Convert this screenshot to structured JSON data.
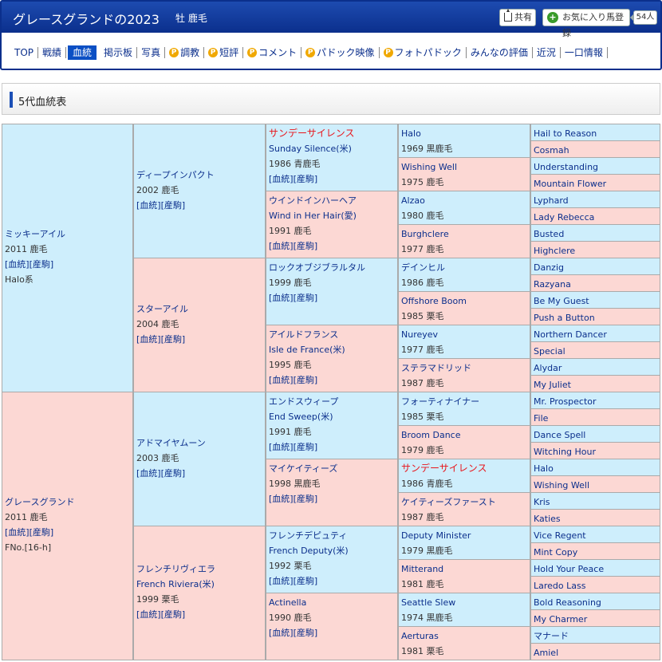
{
  "header": {
    "title": "グレースグランドの2023",
    "sub": "牡 鹿毛",
    "share_label": "共有",
    "fav_label": "お気に入り馬登録",
    "fav_count": "54人"
  },
  "nav": [
    {
      "label": "TOP",
      "p": false,
      "active": false
    },
    {
      "label": "戦績",
      "p": false,
      "active": false
    },
    {
      "label": "血統",
      "p": false,
      "active": true
    },
    {
      "label": "掲示板",
      "p": false,
      "active": false
    },
    {
      "label": "写真",
      "p": false,
      "active": false
    },
    {
      "label": "調教",
      "p": true,
      "active": false
    },
    {
      "label": "短評",
      "p": true,
      "active": false
    },
    {
      "label": "コメント",
      "p": true,
      "active": false
    },
    {
      "label": "パドック映像",
      "p": true,
      "active": false
    },
    {
      "label": "フォトパドック",
      "p": true,
      "active": false
    },
    {
      "label": "みんなの評価",
      "p": false,
      "active": false
    },
    {
      "label": "近況",
      "p": false,
      "active": false
    },
    {
      "label": "一口情報",
      "p": false,
      "active": false
    }
  ],
  "section_title": "5代血統表",
  "links_text": "[血統][産駒]",
  "pedigree": [
    {
      "gen": 1,
      "pos": 0,
      "sex": "m",
      "name": "ミッキーアイル",
      "eng": "",
      "year_color": "2011 鹿毛",
      "links": true,
      "extra": "Halo系"
    },
    {
      "gen": 1,
      "pos": 1,
      "sex": "f",
      "name": "グレースグランド",
      "eng": "",
      "year_color": "2011 鹿毛",
      "links": true,
      "extra": "FNo.[16-h]"
    },
    {
      "gen": 2,
      "pos": 0,
      "sex": "m",
      "name": "ディープインパクト",
      "eng": "",
      "year_color": "2002 鹿毛",
      "links": true
    },
    {
      "gen": 2,
      "pos": 1,
      "sex": "f",
      "name": "スターアイル",
      "eng": "",
      "year_color": "2004 鹿毛",
      "links": true
    },
    {
      "gen": 2,
      "pos": 2,
      "sex": "m",
      "name": "アドマイヤムーン",
      "eng": "",
      "year_color": "2003 鹿毛",
      "links": true
    },
    {
      "gen": 2,
      "pos": 3,
      "sex": "f",
      "name": "フレンチリヴィエラ",
      "eng": "French Riviera(米)",
      "year_color": "1999 栗毛",
      "links": true
    },
    {
      "gen": 3,
      "pos": 0,
      "sex": "m",
      "name": "サンデーサイレンス",
      "eng": "Sunday Silence(米)",
      "year_color": "1986 青鹿毛",
      "links": true,
      "red": true
    },
    {
      "gen": 3,
      "pos": 1,
      "sex": "f",
      "name": "ウインドインハーヘア",
      "eng": "Wind in Her Hair(愛)",
      "year_color": "1991 鹿毛",
      "links": true
    },
    {
      "gen": 3,
      "pos": 2,
      "sex": "m",
      "name": "ロックオブジブラルタル",
      "eng": "",
      "year_color": "1999 鹿毛",
      "links": true
    },
    {
      "gen": 3,
      "pos": 3,
      "sex": "f",
      "name": "アイルドフランス",
      "eng": "Isle de France(米)",
      "year_color": "1995 鹿毛",
      "links": true
    },
    {
      "gen": 3,
      "pos": 4,
      "sex": "m",
      "name": "エンドスウィープ",
      "eng": "End Sweep(米)",
      "year_color": "1991 鹿毛",
      "links": true
    },
    {
      "gen": 3,
      "pos": 5,
      "sex": "f",
      "name": "マイケイティーズ",
      "eng": "",
      "year_color": "1998 黒鹿毛",
      "links": true
    },
    {
      "gen": 3,
      "pos": 6,
      "sex": "m",
      "name": "フレンチデピュティ",
      "eng": "French Deputy(米)",
      "year_color": "1992 栗毛",
      "links": true
    },
    {
      "gen": 3,
      "pos": 7,
      "sex": "f",
      "name": "Actinella",
      "eng": "",
      "year_color": "1990 鹿毛",
      "links": true
    },
    {
      "gen": 4,
      "pos": 0,
      "sex": "m",
      "name": "Halo",
      "year_color": "1969 黒鹿毛"
    },
    {
      "gen": 4,
      "pos": 1,
      "sex": "f",
      "name": "Wishing Well",
      "year_color": "1975 鹿毛"
    },
    {
      "gen": 4,
      "pos": 2,
      "sex": "m",
      "name": "Alzao",
      "year_color": "1980 鹿毛"
    },
    {
      "gen": 4,
      "pos": 3,
      "sex": "f",
      "name": "Burghclere",
      "year_color": "1977 鹿毛"
    },
    {
      "gen": 4,
      "pos": 4,
      "sex": "m",
      "name": "デインヒル",
      "year_color": "1986 鹿毛"
    },
    {
      "gen": 4,
      "pos": 5,
      "sex": "f",
      "name": "Offshore Boom",
      "year_color": "1985 栗毛"
    },
    {
      "gen": 4,
      "pos": 6,
      "sex": "m",
      "name": "Nureyev",
      "year_color": "1977 鹿毛"
    },
    {
      "gen": 4,
      "pos": 7,
      "sex": "f",
      "name": "ステラマドリッド",
      "year_color": "1987 鹿毛"
    },
    {
      "gen": 4,
      "pos": 8,
      "sex": "m",
      "name": "フォーティナイナー",
      "year_color": "1985 栗毛"
    },
    {
      "gen": 4,
      "pos": 9,
      "sex": "f",
      "name": "Broom Dance",
      "year_color": "1979 鹿毛"
    },
    {
      "gen": 4,
      "pos": 10,
      "sex": "m",
      "name": "サンデーサイレンス",
      "year_color": "1986 青鹿毛",
      "red": true
    },
    {
      "gen": 4,
      "pos": 11,
      "sex": "f",
      "name": "ケイティーズファースト",
      "year_color": "1987 鹿毛"
    },
    {
      "gen": 4,
      "pos": 12,
      "sex": "m",
      "name": "Deputy Minister",
      "year_color": "1979 黒鹿毛"
    },
    {
      "gen": 4,
      "pos": 13,
      "sex": "f",
      "name": "Mitterand",
      "year_color": "1981 鹿毛"
    },
    {
      "gen": 4,
      "pos": 14,
      "sex": "m",
      "name": "Seattle Slew",
      "year_color": "1974 黒鹿毛"
    },
    {
      "gen": 4,
      "pos": 15,
      "sex": "f",
      "name": "Aerturas",
      "year_color": "1981 栗毛"
    },
    {
      "gen": 5,
      "pos": 0,
      "sex": "m",
      "name": "Hail to Reason"
    },
    {
      "gen": 5,
      "pos": 1,
      "sex": "f",
      "name": "Cosmah"
    },
    {
      "gen": 5,
      "pos": 2,
      "sex": "m",
      "name": "Understanding"
    },
    {
      "gen": 5,
      "pos": 3,
      "sex": "f",
      "name": "Mountain Flower"
    },
    {
      "gen": 5,
      "pos": 4,
      "sex": "m",
      "name": "Lyphard"
    },
    {
      "gen": 5,
      "pos": 5,
      "sex": "f",
      "name": "Lady Rebecca"
    },
    {
      "gen": 5,
      "pos": 6,
      "sex": "m",
      "name": "Busted"
    },
    {
      "gen": 5,
      "pos": 7,
      "sex": "f",
      "name": "Highclere"
    },
    {
      "gen": 5,
      "pos": 8,
      "sex": "m",
      "name": "Danzig"
    },
    {
      "gen": 5,
      "pos": 9,
      "sex": "f",
      "name": "Razyana"
    },
    {
      "gen": 5,
      "pos": 10,
      "sex": "m",
      "name": "Be My Guest"
    },
    {
      "gen": 5,
      "pos": 11,
      "sex": "f",
      "name": "Push a Button"
    },
    {
      "gen": 5,
      "pos": 12,
      "sex": "m",
      "name": "Northern Dancer"
    },
    {
      "gen": 5,
      "pos": 13,
      "sex": "f",
      "name": "Special"
    },
    {
      "gen": 5,
      "pos": 14,
      "sex": "m",
      "name": "Alydar"
    },
    {
      "gen": 5,
      "pos": 15,
      "sex": "f",
      "name": "My Juliet"
    },
    {
      "gen": 5,
      "pos": 16,
      "sex": "m",
      "name": "Mr. Prospector"
    },
    {
      "gen": 5,
      "pos": 17,
      "sex": "f",
      "name": "File"
    },
    {
      "gen": 5,
      "pos": 18,
      "sex": "m",
      "name": "Dance Spell"
    },
    {
      "gen": 5,
      "pos": 19,
      "sex": "f",
      "name": "Witching Hour"
    },
    {
      "gen": 5,
      "pos": 20,
      "sex": "m",
      "name": "Halo"
    },
    {
      "gen": 5,
      "pos": 21,
      "sex": "f",
      "name": "Wishing Well"
    },
    {
      "gen": 5,
      "pos": 22,
      "sex": "m",
      "name": "Kris"
    },
    {
      "gen": 5,
      "pos": 23,
      "sex": "f",
      "name": "Katies"
    },
    {
      "gen": 5,
      "pos": 24,
      "sex": "m",
      "name": "Vice Regent"
    },
    {
      "gen": 5,
      "pos": 25,
      "sex": "f",
      "name": "Mint Copy"
    },
    {
      "gen": 5,
      "pos": 26,
      "sex": "m",
      "name": "Hold Your Peace"
    },
    {
      "gen": 5,
      "pos": 27,
      "sex": "f",
      "name": "Laredo Lass"
    },
    {
      "gen": 5,
      "pos": 28,
      "sex": "m",
      "name": "Bold Reasoning"
    },
    {
      "gen": 5,
      "pos": 29,
      "sex": "f",
      "name": "My Charmer"
    },
    {
      "gen": 5,
      "pos": 30,
      "sex": "m",
      "name": "マナード"
    },
    {
      "gen": 5,
      "pos": 31,
      "sex": "f",
      "name": "Amiel"
    }
  ]
}
